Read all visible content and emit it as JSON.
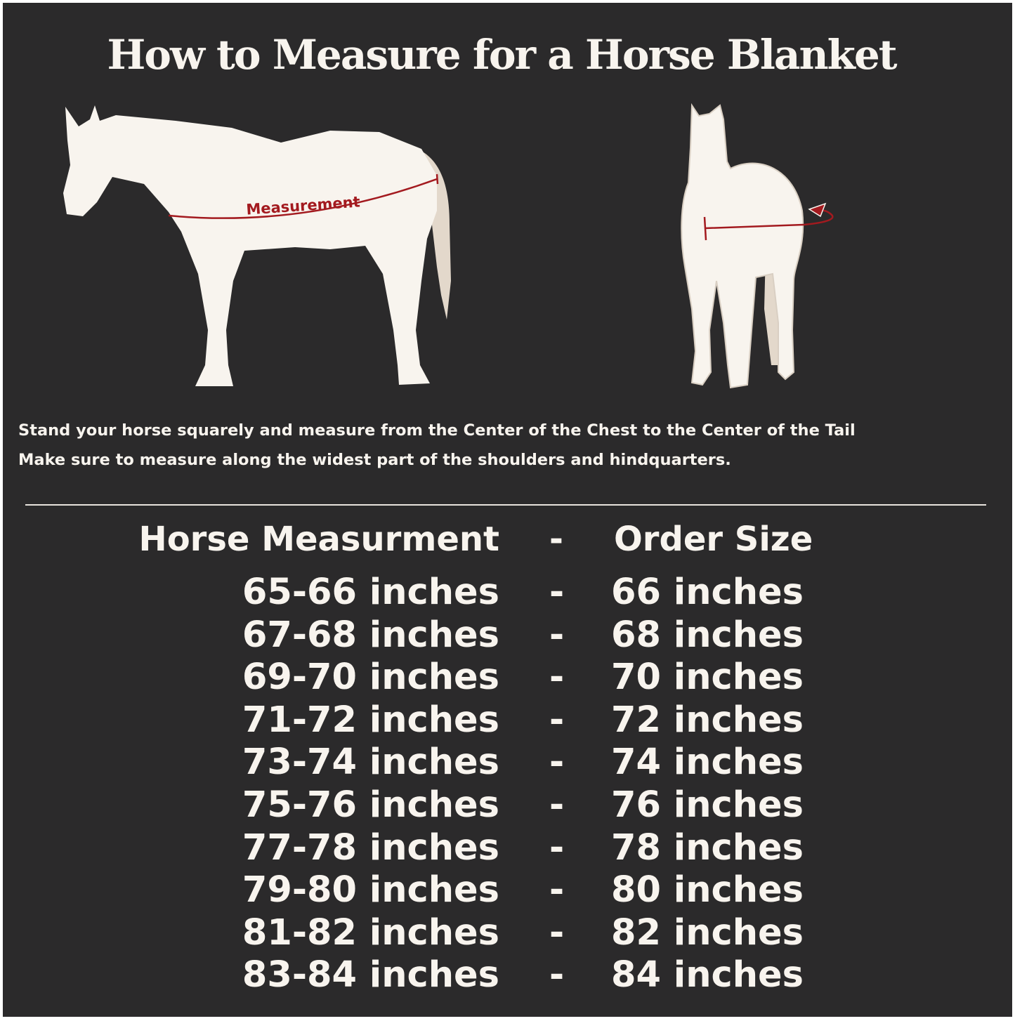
{
  "title": "How to Measure for a Horse Blanket",
  "diagram": {
    "measurement_label": "Measurement",
    "colors": {
      "background": "#2b2a2b",
      "horse": "#f8f4ee",
      "tail": "#e3d8cb",
      "measure_line": "#a31a1f"
    }
  },
  "instructions": [
    "Stand your horse squarely and measure from the Center of the Chest to the Center of the Tail",
    "Make sure to measure along the widest part of the shoulders and hindquarters."
  ],
  "size_table": {
    "headers": {
      "measurement": "Horse Measurment",
      "separator": "-",
      "size": "Order Size"
    },
    "rows": [
      {
        "measurement": "65-66 inches",
        "separator": "-",
        "size": "66 inches"
      },
      {
        "measurement": "67-68 inches",
        "separator": "-",
        "size": "68 inches"
      },
      {
        "measurement": "69-70 inches",
        "separator": "-",
        "size": "70 inches"
      },
      {
        "measurement": "71-72 inches",
        "separator": "-",
        "size": "72 inches"
      },
      {
        "measurement": "73-74 inches",
        "separator": "-",
        "size": "74 inches"
      },
      {
        "measurement": "75-76 inches",
        "separator": "-",
        "size": "76 inches"
      },
      {
        "measurement": "77-78 inches",
        "separator": "-",
        "size": "78 inches"
      },
      {
        "measurement": "79-80 inches",
        "separator": "-",
        "size": "80 inches"
      },
      {
        "measurement": "81-82 inches",
        "separator": "-",
        "size": "82 inches"
      },
      {
        "measurement": "83-84 inches",
        "separator": "-",
        "size": "84 inches"
      }
    ]
  }
}
